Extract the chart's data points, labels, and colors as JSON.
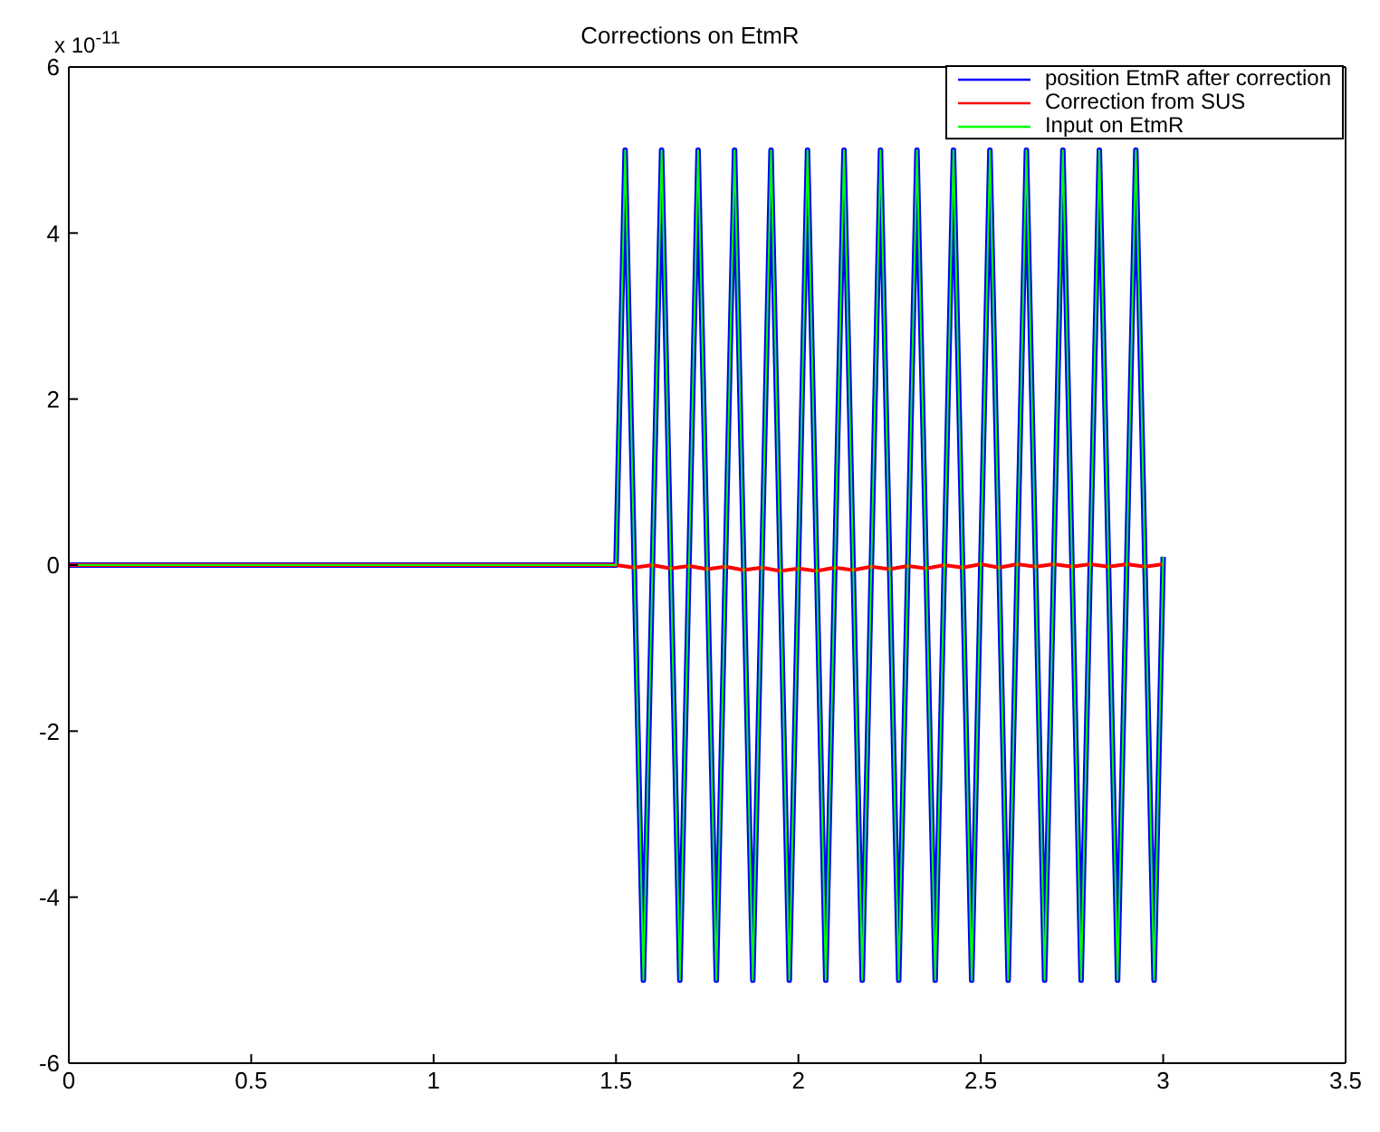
{
  "chart_data": {
    "type": "line",
    "title": "Corrections on EtmR",
    "annotations": [
      "x 10$^{-11}$"
    ],
    "xlim": [
      0,
      3.5
    ],
    "xticks": [
      0,
      0.5,
      1,
      1.5,
      2,
      2.5,
      3,
      3.5
    ],
    "ylim": [
      -6,
      6
    ],
    "yticks": [
      -6,
      -4,
      -2,
      0,
      2,
      4,
      6
    ],
    "grid": false,
    "legend": "top right",
    "marker": "none",
    "line_style": "solid",
    "series": [
      {
        "name": "position EtmR after correction",
        "color": "#0000ff",
        "x": [
          0,
          1.5,
          1.525,
          1.55,
          1.575,
          1.6,
          1.625,
          1.65,
          1.675,
          1.7,
          1.725,
          1.75,
          1.775,
          1.8,
          1.825,
          1.85,
          1.875,
          1.9,
          1.925,
          1.95,
          1.975,
          2,
          2.025,
          2.05,
          2.075,
          2.1,
          2.125,
          2.15,
          2.175,
          2.2,
          2.225,
          2.25,
          2.275,
          2.3,
          2.325,
          2.35,
          2.375,
          2.4,
          2.425,
          2.45,
          2.475,
          2.5,
          2.525,
          2.55,
          2.575,
          2.6,
          2.625,
          2.65,
          2.675,
          2.7,
          2.725,
          2.75,
          2.775,
          2.8,
          2.825,
          2.85,
          2.875,
          2.9,
          2.925,
          2.95,
          2.975,
          3
        ],
        "values": [
          0,
          0,
          5,
          0,
          -5,
          0,
          5,
          0,
          -5,
          0,
          5,
          0,
          -5,
          0,
          5,
          0,
          -5,
          0,
          5,
          0,
          -5,
          0,
          5,
          0,
          -5,
          0,
          5,
          0,
          -5,
          0,
          5,
          0,
          -5,
          0,
          5,
          0,
          -5,
          0,
          5,
          0,
          -5,
          0,
          5,
          0,
          -5,
          0,
          5,
          0,
          -5,
          0,
          5,
          0,
          -5,
          0,
          5,
          0,
          -5,
          0,
          5,
          0,
          -5,
          0.1
        ]
      },
      {
        "name": "Correction from SUS",
        "color": "#ff0000",
        "x": [
          0,
          1.5,
          1.55,
          1.6,
          1.65,
          1.7,
          1.75,
          1.8,
          1.85,
          1.9,
          1.95,
          2,
          2.05,
          2.1,
          2.15,
          2.2,
          2.25,
          2.3,
          2.35,
          2.4,
          2.45,
          2.5,
          2.55,
          2.6,
          2.65,
          2.7,
          2.75,
          2.8,
          2.85,
          2.9,
          2.95,
          3
        ],
        "values": [
          0,
          0,
          -0.03,
          0,
          -0.04,
          -0.01,
          -0.05,
          -0.02,
          -0.06,
          -0.03,
          -0.07,
          -0.04,
          -0.07,
          -0.03,
          -0.06,
          -0.02,
          -0.05,
          -0.01,
          -0.04,
          0,
          -0.03,
          0.01,
          -0.03,
          0.01,
          -0.02,
          0.01,
          -0.02,
          0.01,
          -0.02,
          0.01,
          -0.02,
          0.01
        ]
      },
      {
        "name": "Input on EtmR",
        "color": "#00ff00",
        "x": [
          0,
          1.5,
          1.525,
          1.55,
          1.575,
          1.6,
          1.625,
          1.65,
          1.675,
          1.7,
          1.725,
          1.75,
          1.775,
          1.8,
          1.825,
          1.85,
          1.875,
          1.9,
          1.925,
          1.95,
          1.975,
          2,
          2.025,
          2.05,
          2.075,
          2.1,
          2.125,
          2.15,
          2.175,
          2.2,
          2.225,
          2.25,
          2.275,
          2.3,
          2.325,
          2.35,
          2.375,
          2.4,
          2.425,
          2.45,
          2.475,
          2.5,
          2.525,
          2.55,
          2.575,
          2.6,
          2.625,
          2.65,
          2.675,
          2.7,
          2.725,
          2.75,
          2.775,
          2.8,
          2.825,
          2.85,
          2.875,
          2.9,
          2.925,
          2.95,
          2.975,
          3
        ],
        "values": [
          0,
          0,
          5,
          0,
          -5,
          0,
          5,
          0,
          -5,
          0,
          5,
          0,
          -5,
          0,
          5,
          0,
          -5,
          0,
          5,
          0,
          -5,
          0,
          5,
          0,
          -5,
          0,
          5,
          0,
          -5,
          0,
          5,
          0,
          -5,
          0,
          5,
          0,
          -5,
          0,
          5,
          0,
          -5,
          0,
          5,
          0,
          -5,
          0,
          5,
          0,
          -5,
          0,
          5,
          0,
          -5,
          0,
          5,
          0,
          -5,
          0,
          5,
          0,
          -5,
          0.1
        ]
      }
    ]
  }
}
